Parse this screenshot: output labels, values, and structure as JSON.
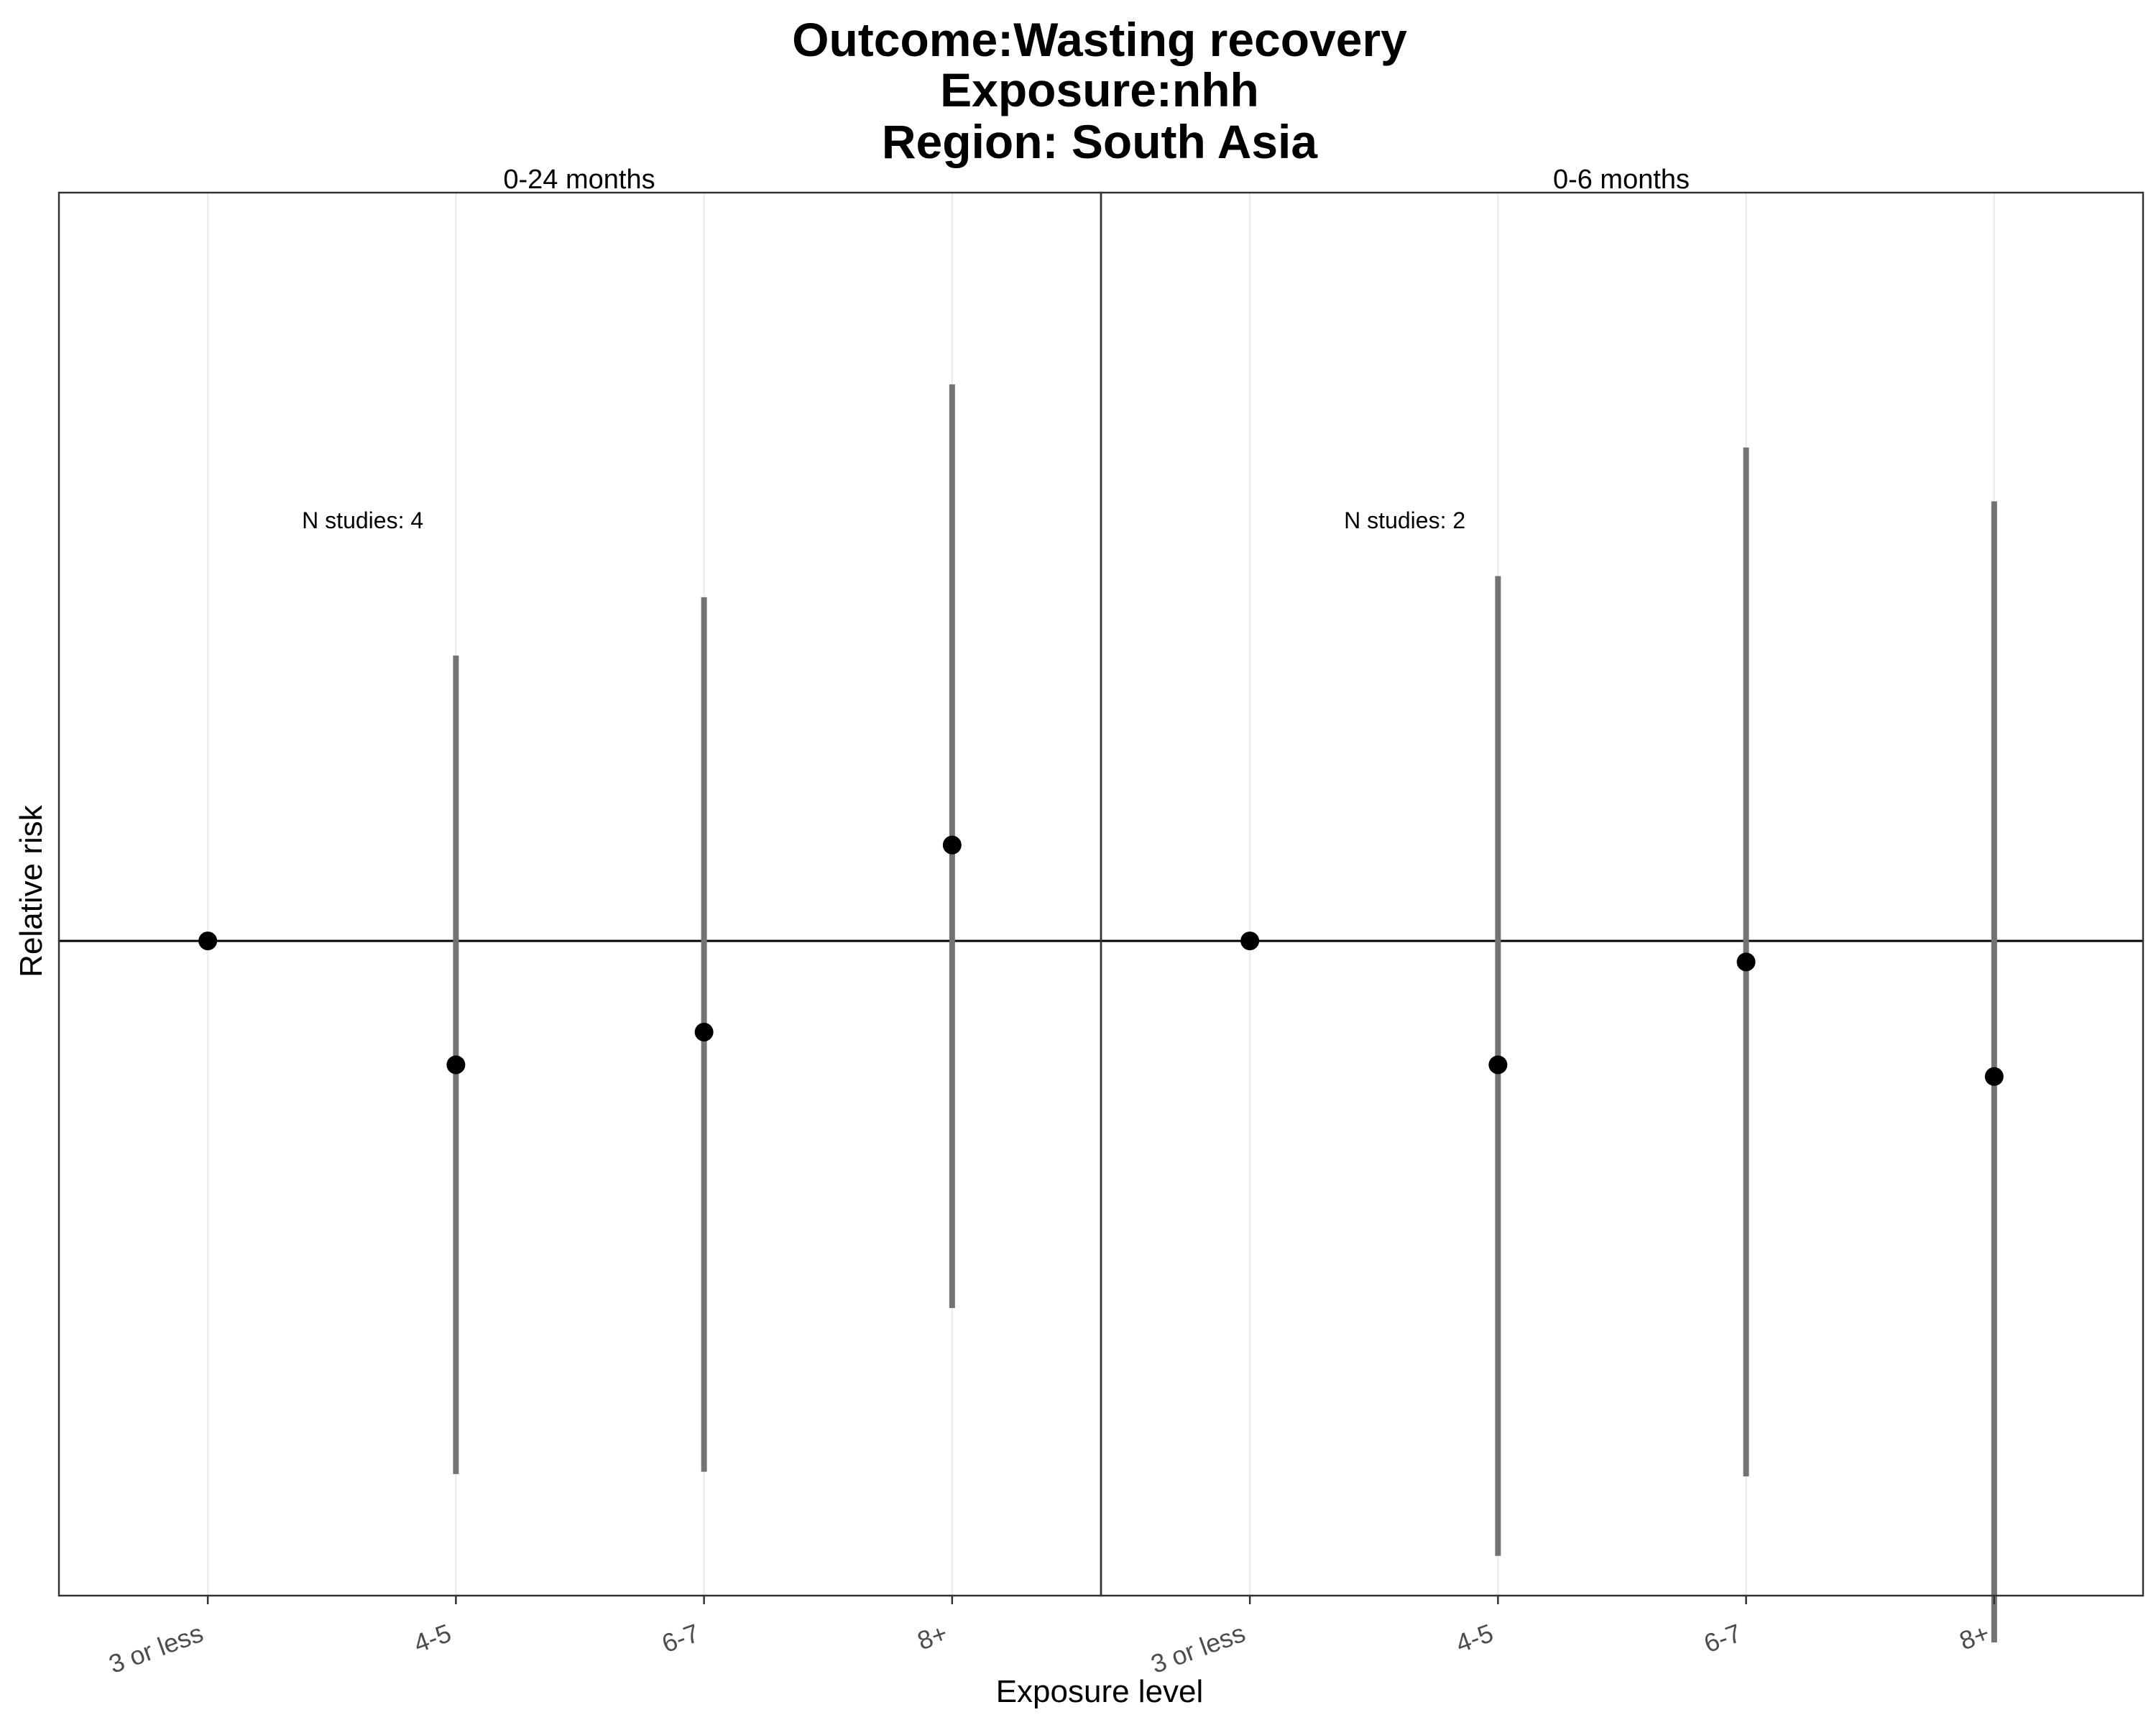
{
  "chart_data": {
    "type": "scatter",
    "title_lines": [
      "Outcome:Wasting recovery",
      "Exposure:nhh",
      "Region: South Asia"
    ],
    "xlabel": "Exposure level",
    "ylabel": "Relative risk",
    "categories": [
      "3 or less",
      "4-5",
      "6-7",
      "8+"
    ],
    "reference_line": 1,
    "ylim": [
      0.72,
      1.32
    ],
    "panels": [
      {
        "label": "0-24 months",
        "annotation": "N studies: 4",
        "points": [
          {
            "x": "3 or less",
            "rr": 1.0,
            "lower": null,
            "upper": null
          },
          {
            "x": "4-5",
            "rr": 0.947,
            "lower": 0.772,
            "upper": 1.122
          },
          {
            "x": "6-7",
            "rr": 0.961,
            "lower": 0.773,
            "upper": 1.147
          },
          {
            "x": "8+",
            "rr": 1.041,
            "lower": 0.843,
            "upper": 1.238
          }
        ]
      },
      {
        "label": "0-6 months",
        "annotation": "N studies: 2",
        "points": [
          {
            "x": "3 or less",
            "rr": 1.0,
            "lower": null,
            "upper": null
          },
          {
            "x": "4-5",
            "rr": 0.947,
            "lower": 0.737,
            "upper": 1.156
          },
          {
            "x": "6-7",
            "rr": 0.991,
            "lower": 0.771,
            "upper": 1.211
          },
          {
            "x": "8+",
            "rr": 0.942,
            "lower": 0.7,
            "upper": 1.188
          }
        ]
      }
    ],
    "colors": {
      "point": "#000000",
      "errorbar": "#737373",
      "gridline": "#ebebeb",
      "frame": "#333333",
      "refline": "#000000"
    }
  }
}
